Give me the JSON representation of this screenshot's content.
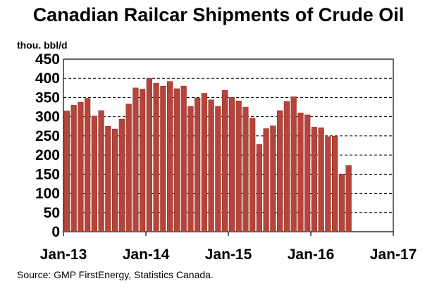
{
  "chart_data": {
    "type": "bar",
    "title": "Canadian Railcar Shipments of Crude Oil",
    "ylabel": "thou. bbl/d",
    "source": "Source:  GMP FirstEnergy, Statistics Canada.",
    "ylim": [
      0,
      450
    ],
    "y_ticks": [
      "0",
      "50",
      "100",
      "150",
      "200",
      "250",
      "300",
      "350",
      "400",
      "450"
    ],
    "x_ticks": [
      "Jan-13",
      "Jan-14",
      "Jan-15",
      "Jan-16",
      "Jan-17"
    ],
    "x_range_months": 48,
    "grid": "horizontal dashed",
    "bar_color": "#b5453b",
    "values": [
      315,
      330,
      338,
      348,
      302,
      316,
      275,
      268,
      294,
      333,
      375,
      372,
      400,
      387,
      380,
      392,
      373,
      380,
      327,
      349,
      361,
      344,
      327,
      369,
      350,
      341,
      325,
      296,
      228,
      269,
      276,
      316,
      340,
      352,
      310,
      305,
      273,
      271,
      248,
      249,
      150,
      173
    ]
  }
}
